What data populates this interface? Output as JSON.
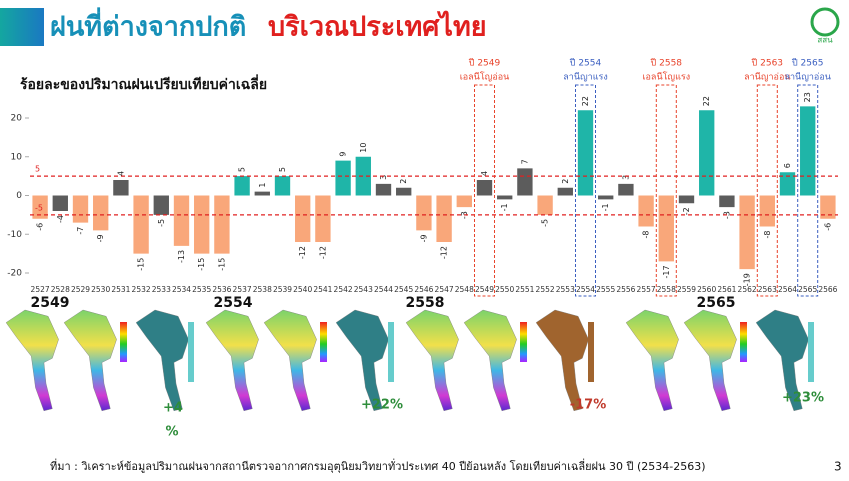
{
  "header": {
    "title": "ฝนที่ต่างจากปกติ",
    "title_highlight": "บริเวณประเทศไทย",
    "logo": "สสน"
  },
  "chart_data": {
    "type": "bar",
    "title": "ร้อยละของปริมาณฝนเปรียบเทียบค่าเฉลี่ย",
    "categories": [
      "2527",
      "2528",
      "2529",
      "2530",
      "2531",
      "2532",
      "2533",
      "2534",
      "2535",
      "2536",
      "2537",
      "2538",
      "2539",
      "2540",
      "2541",
      "2542",
      "2543",
      "2544",
      "2545",
      "2546",
      "2547",
      "2548",
      "2549",
      "2550",
      "2551",
      "2552",
      "2553",
      "2554",
      "2555",
      "2556",
      "2557",
      "2558",
      "2559",
      "2560",
      "2561",
      "2562",
      "2563",
      "2564",
      "2565",
      "2566"
    ],
    "values": [
      -6,
      -4,
      -7,
      -9,
      4,
      -15,
      -5,
      -13,
      -15,
      -15,
      5,
      1,
      5,
      -12,
      -12,
      9,
      10,
      3,
      2,
      -9,
      -12,
      -3,
      4,
      -1,
      7,
      -5,
      2,
      22,
      -1,
      3,
      -8,
      -17,
      -2,
      22,
      -3,
      -19,
      -8,
      6,
      23,
      -6
    ],
    "colors": [
      "#f9a77a",
      "#5c5c5c",
      "#f9a77a",
      "#f9a77a",
      "#5c5c5c",
      "#f9a77a",
      "#5c5c5c",
      "#f9a77a",
      "#f9a77a",
      "#f9a77a",
      "#1fb5a8",
      "#5c5c5c",
      "#1fb5a8",
      "#f9a77a",
      "#f9a77a",
      "#1fb5a8",
      "#1fb5a8",
      "#5c5c5c",
      "#5c5c5c",
      "#f9a77a",
      "#f9a77a",
      "#f9a77a",
      "#5c5c5c",
      "#5c5c5c",
      "#5c5c5c",
      "#f9a77a",
      "#5c5c5c",
      "#1fb5a8",
      "#5c5c5c",
      "#5c5c5c",
      "#f9a77a",
      "#f9a77a",
      "#5c5c5c",
      "#1fb5a8",
      "#5c5c5c",
      "#f9a77a",
      "#f9a77a",
      "#1fb5a8",
      "#1fb5a8",
      "#f9a77a"
    ],
    "ylim": [
      -22,
      24
    ],
    "yticks": [
      -20,
      -10,
      0,
      10,
      20
    ],
    "reference_lines": [
      5,
      -5
    ],
    "reference_color": "#e02020",
    "annotations": [
      {
        "title": "ปี 2549",
        "label": "เอลนีโญอ่อน",
        "color": "#e8432b"
      },
      {
        "title": "ปี 2554",
        "label": "ลานีญาแรง",
        "color": "#3b5fc0"
      },
      {
        "title": "ปี 2558",
        "label": "เอลนีโญแรง",
        "color": "#e8432b"
      },
      {
        "title": "ปี 2563",
        "label": "ลานีญาอ่อน",
        "color": "#e8432b"
      },
      {
        "title": "ปี 2565",
        "label": "ลานีญาอ่อน",
        "color": "#3b5fc0"
      }
    ]
  },
  "maps": [
    {
      "year": "2549",
      "change": "+4",
      "unit": "%"
    },
    {
      "year": "2554",
      "change": "+22%"
    },
    {
      "year": "2558",
      "change": "-17%"
    },
    {
      "year": "2565",
      "change": "+23%"
    }
  ],
  "footer": {
    "source": "ที่มา : วิเคราะห์ข้อมูลปริมาณฝนจากสถานีตรวจอากาศกรมอุตุนิยมวิทยาทั่วประเทศ  40 ปีย้อนหลัง โดยเทียบค่าเฉลี่ยฝน 30 ปี (2534-2563)",
    "page": "3"
  }
}
